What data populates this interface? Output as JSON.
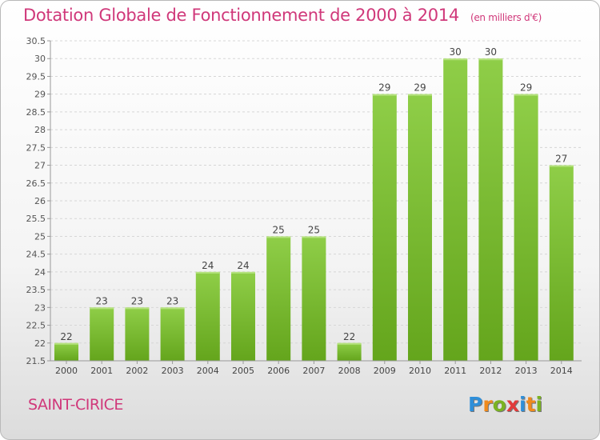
{
  "title": "Dotation Globale de Fonctionnement de 2000 à 2014",
  "subtitle": "(en milliers d'€)",
  "commune": "SAINT-CIRICE",
  "logo": {
    "letters": [
      "P",
      "r",
      "o",
      "x",
      "i",
      "t",
      "i"
    ],
    "colors": [
      "#2f8fd9",
      "#f08a1c",
      "#7ab321",
      "#e23b3b",
      "#2f8fd9",
      "#f08a1c",
      "#7ab321"
    ]
  },
  "chart_data": {
    "type": "bar",
    "categories": [
      "2000",
      "2001",
      "2002",
      "2003",
      "2004",
      "2005",
      "2006",
      "2007",
      "2008",
      "2009",
      "2010",
      "2011",
      "2012",
      "2013",
      "2014"
    ],
    "values": [
      22,
      23,
      23,
      23,
      24,
      24,
      25,
      25,
      22,
      29,
      29,
      30,
      30,
      29,
      27
    ],
    "ylim": [
      21.5,
      30.5
    ],
    "yticks": [
      "21.5",
      "22",
      "22.5",
      "23",
      "23.5",
      "24",
      "24.5",
      "25",
      "25.5",
      "26",
      "26.5",
      "27",
      "27.5",
      "28",
      "28.5",
      "29",
      "29.5",
      "30",
      "30.5"
    ],
    "bar_color": "#7cc236",
    "grid": true
  }
}
